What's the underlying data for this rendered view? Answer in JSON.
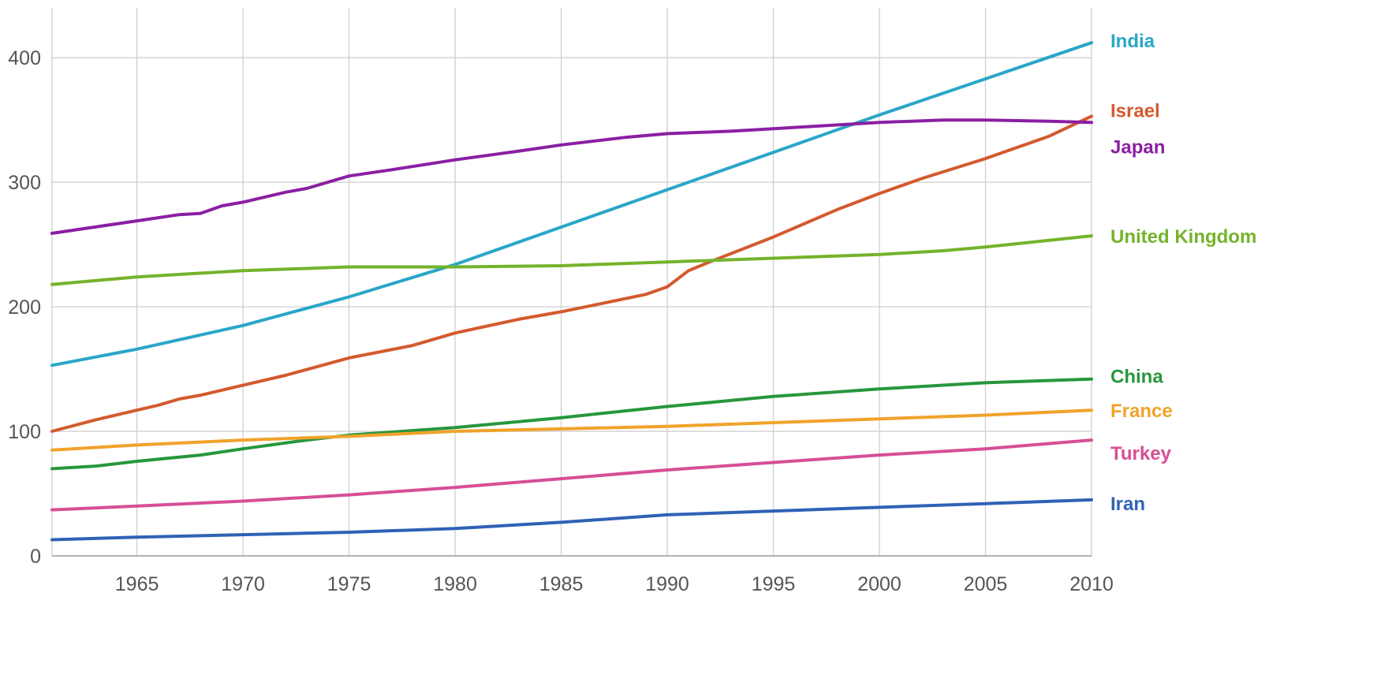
{
  "chart_data": {
    "type": "line",
    "title": "",
    "xlabel": "",
    "ylabel": "",
    "xlim": [
      1961,
      2010
    ],
    "ylim": [
      0,
      440
    ],
    "x_ticks": [
      1965,
      1970,
      1975,
      1980,
      1985,
      1990,
      1995,
      2000,
      2005,
      2010
    ],
    "y_ticks": [
      0,
      100,
      200,
      300,
      400
    ],
    "grid": true,
    "legend": "inline labels at right end of each line",
    "series": [
      {
        "name": "India",
        "color": "#2aa6c8",
        "points": [
          [
            1961,
            153
          ],
          [
            1965,
            166
          ],
          [
            1970,
            185
          ],
          [
            1975,
            208
          ],
          [
            1980,
            234
          ],
          [
            1985,
            264
          ],
          [
            1990,
            294
          ],
          [
            1995,
            324
          ],
          [
            2000,
            354
          ],
          [
            2005,
            383
          ],
          [
            2010,
            412
          ]
        ]
      },
      {
        "name": "Israel",
        "color": "#d35a2e",
        "points": [
          [
            1961,
            100
          ],
          [
            1963,
            109
          ],
          [
            1965,
            117
          ],
          [
            1966,
            121
          ],
          [
            1967,
            126
          ],
          [
            1968,
            129
          ],
          [
            1970,
            137
          ],
          [
            1972,
            145
          ],
          [
            1975,
            159
          ],
          [
            1978,
            169
          ],
          [
            1980,
            179
          ],
          [
            1983,
            190
          ],
          [
            1985,
            196
          ],
          [
            1987,
            203
          ],
          [
            1989,
            210
          ],
          [
            1990,
            216
          ],
          [
            1991,
            229
          ],
          [
            1992,
            236
          ],
          [
            1995,
            256
          ],
          [
            1998,
            278
          ],
          [
            2000,
            291
          ],
          [
            2002,
            303
          ],
          [
            2005,
            319
          ],
          [
            2008,
            337
          ],
          [
            2010,
            353
          ]
        ]
      },
      {
        "name": "Japan",
        "color": "#8a1fa3",
        "points": [
          [
            1961,
            259
          ],
          [
            1963,
            264
          ],
          [
            1965,
            269
          ],
          [
            1967,
            274
          ],
          [
            1968,
            275
          ],
          [
            1969,
            281
          ],
          [
            1970,
            284
          ],
          [
            1972,
            292
          ],
          [
            1973,
            295
          ],
          [
            1975,
            305
          ],
          [
            1977,
            310
          ],
          [
            1980,
            318
          ],
          [
            1983,
            325
          ],
          [
            1985,
            330
          ],
          [
            1988,
            336
          ],
          [
            1990,
            339
          ],
          [
            1993,
            341
          ],
          [
            1995,
            343
          ],
          [
            2000,
            348
          ],
          [
            2003,
            350
          ],
          [
            2005,
            350
          ],
          [
            2008,
            349
          ],
          [
            2010,
            348
          ]
        ]
      },
      {
        "name": "United Kingdom",
        "color": "#74b32b",
        "points": [
          [
            1961,
            218
          ],
          [
            1965,
            224
          ],
          [
            1970,
            229
          ],
          [
            1975,
            232
          ],
          [
            1980,
            232
          ],
          [
            1985,
            233
          ],
          [
            1990,
            236
          ],
          [
            1995,
            239
          ],
          [
            2000,
            242
          ],
          [
            2003,
            245
          ],
          [
            2005,
            248
          ],
          [
            2010,
            257
          ]
        ]
      },
      {
        "name": "China",
        "color": "#27963d",
        "points": [
          [
            1961,
            70
          ],
          [
            1963,
            72
          ],
          [
            1965,
            76
          ],
          [
            1968,
            81
          ],
          [
            1970,
            86
          ],
          [
            1973,
            93
          ],
          [
            1975,
            97
          ],
          [
            1980,
            103
          ],
          [
            1985,
            111
          ],
          [
            1990,
            120
          ],
          [
            1995,
            128
          ],
          [
            2000,
            134
          ],
          [
            2005,
            139
          ],
          [
            2010,
            142
          ]
        ]
      },
      {
        "name": "France",
        "color": "#f0a32a",
        "points": [
          [
            1961,
            85
          ],
          [
            1965,
            89
          ],
          [
            1970,
            93
          ],
          [
            1975,
            96
          ],
          [
            1980,
            100
          ],
          [
            1985,
            102
          ],
          [
            1990,
            104
          ],
          [
            1995,
            107
          ],
          [
            2000,
            110
          ],
          [
            2005,
            113
          ],
          [
            2010,
            117
          ]
        ]
      },
      {
        "name": "Turkey",
        "color": "#d74e96",
        "points": [
          [
            1961,
            37
          ],
          [
            1965,
            40
          ],
          [
            1970,
            44
          ],
          [
            1975,
            49
          ],
          [
            1980,
            55
          ],
          [
            1985,
            62
          ],
          [
            1990,
            69
          ],
          [
            1995,
            75
          ],
          [
            2000,
            81
          ],
          [
            2005,
            86
          ],
          [
            2010,
            93
          ]
        ]
      },
      {
        "name": "Iran",
        "color": "#2f62b6",
        "points": [
          [
            1961,
            13
          ],
          [
            1965,
            15
          ],
          [
            1970,
            17
          ],
          [
            1975,
            19
          ],
          [
            1980,
            22
          ],
          [
            1985,
            27
          ],
          [
            1990,
            33
          ],
          [
            1995,
            36
          ],
          [
            2000,
            39
          ],
          [
            2005,
            42
          ],
          [
            2010,
            45
          ]
        ]
      }
    ]
  }
}
